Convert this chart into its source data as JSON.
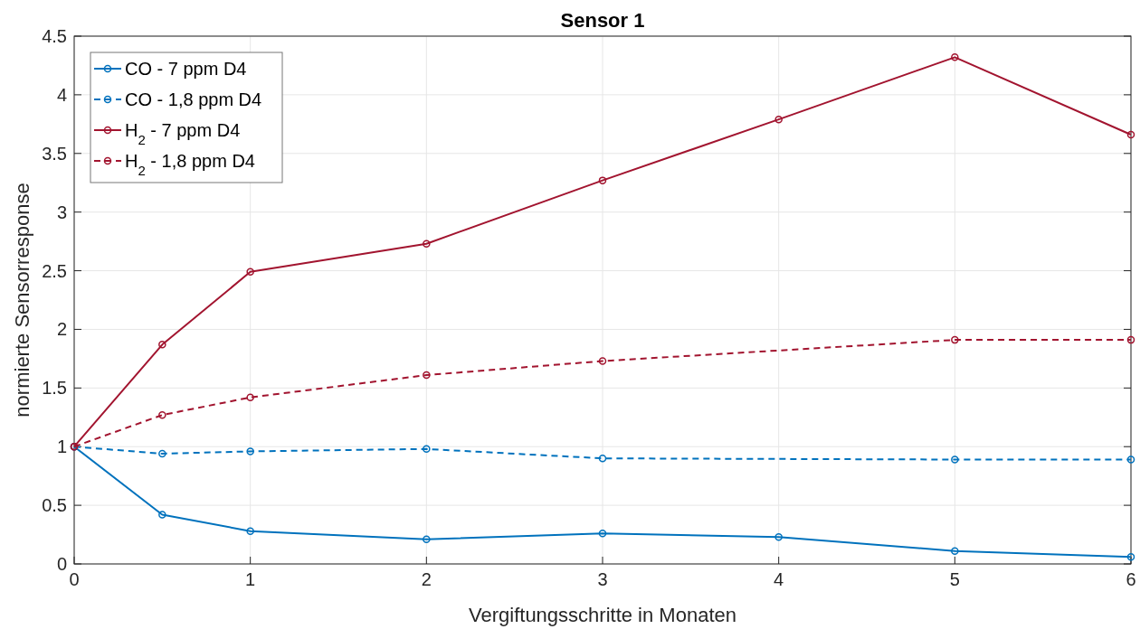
{
  "chart_data": {
    "type": "line",
    "title": "Sensor 1",
    "xlabel": "Vergiftungsschritte in Monaten",
    "ylabel": "normierte Sensorresponse",
    "xlim": [
      0,
      6
    ],
    "xticks": [
      0,
      1,
      2,
      3,
      4,
      5,
      6
    ],
    "ylim": [
      0,
      4.5
    ],
    "yticks": [
      0,
      0.5,
      1,
      1.5,
      2,
      2.5,
      3,
      3.5,
      4,
      4.5
    ],
    "grid": true,
    "legend": "top left",
    "marker": "circle",
    "series": [
      {
        "name": "CO - 7 ppm D4",
        "color": "#0072bd",
        "line_style": "solid",
        "x": [
          0,
          0.5,
          1,
          2,
          3,
          4,
          5,
          6
        ],
        "values": [
          1,
          0.42,
          0.28,
          0.21,
          0.26,
          0.23,
          0.11,
          0.06
        ]
      },
      {
        "name": "CO - 1,8 ppm D4",
        "color": "#0072bd",
        "line_style": "dashed",
        "x": [
          0,
          0.5,
          1,
          2,
          3,
          5,
          6
        ],
        "values": [
          1,
          0.94,
          0.96,
          0.98,
          0.9,
          0.89,
          0.89
        ]
      },
      {
        "name": "H$_{2}$ - 7 ppm D4",
        "color": "#a2142f",
        "line_style": "solid",
        "x": [
          0,
          0.5,
          1,
          2,
          3,
          4,
          5,
          6
        ],
        "values": [
          1,
          1.87,
          2.49,
          2.73,
          3.27,
          3.79,
          4.32,
          3.66
        ]
      },
      {
        "name": "H$_{2}$ - 1,8 ppm D4",
        "color": "#a2142f",
        "line_style": "dashed",
        "x": [
          0,
          0.5,
          1,
          2,
          3,
          5,
          6
        ],
        "values": [
          1,
          1.27,
          1.42,
          1.61,
          1.73,
          1.91,
          1.91
        ]
      }
    ]
  }
}
